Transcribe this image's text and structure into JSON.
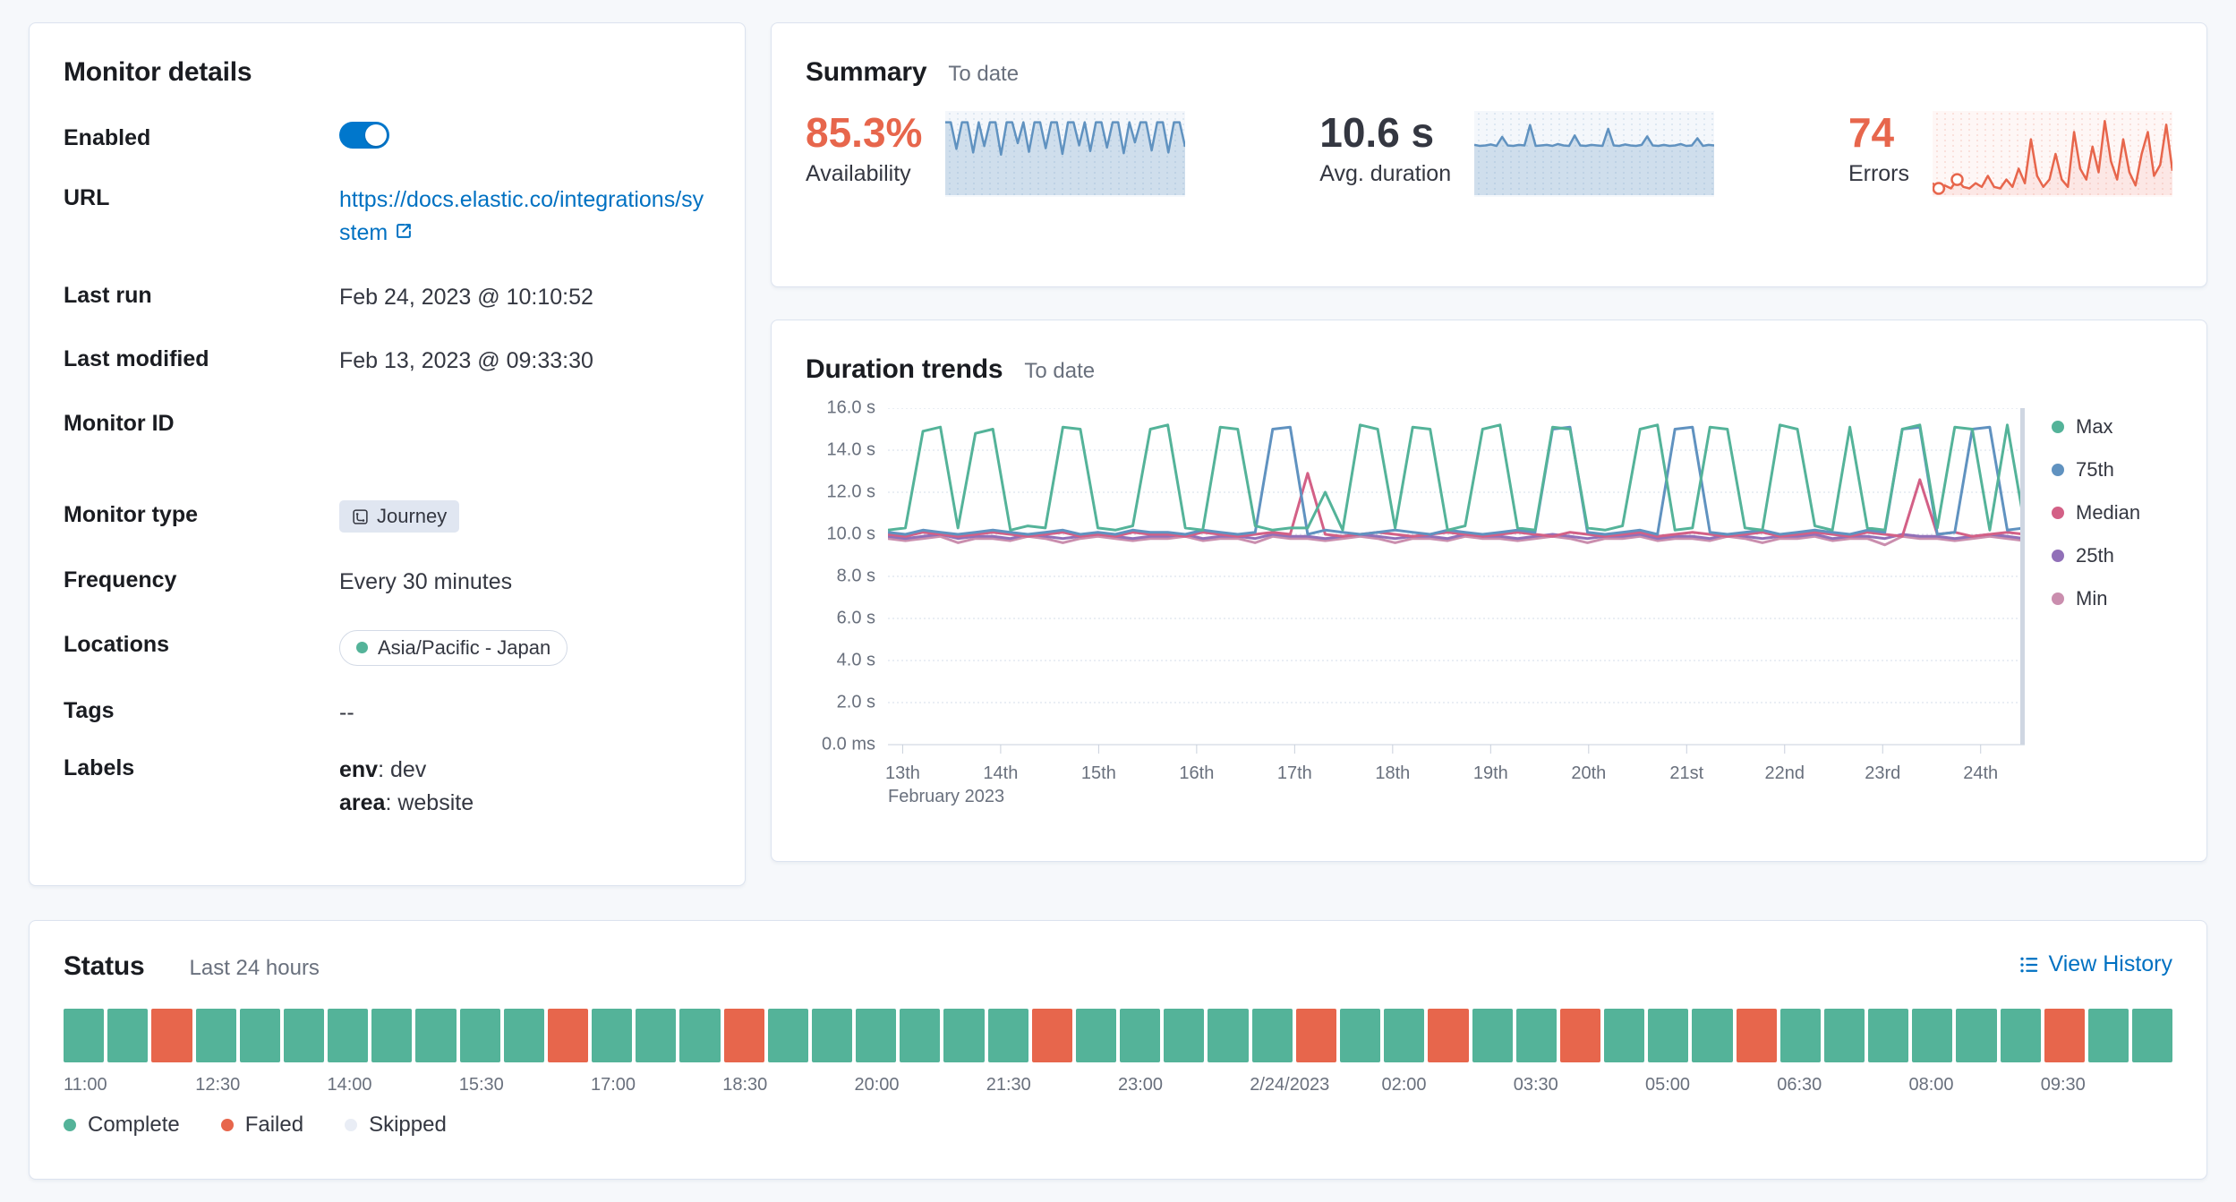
{
  "monitor_details": {
    "title": "Monitor details",
    "enabled_label": "Enabled",
    "url_label": "URL",
    "url_value": "https://docs.elastic.co/integrations/system",
    "last_run_label": "Last run",
    "last_run_value": "Feb 24, 2023 @ 10:10:52",
    "last_modified_label": "Last modified",
    "last_modified_value": "Feb 13, 2023 @ 09:33:30",
    "monitor_id_label": "Monitor ID",
    "monitor_id_value": "",
    "monitor_type_label": "Monitor type",
    "monitor_type_badge": "Journey",
    "frequency_label": "Frequency",
    "frequency_value": "Every 30 minutes",
    "locations_label": "Locations",
    "locations_badge": "Asia/Pacific - Japan",
    "location_dot_color": "#54b399",
    "tags_label": "Tags",
    "tags_value": "--",
    "labels_label": "Labels",
    "labels": [
      {
        "key": "env",
        "rest": ": dev"
      },
      {
        "key": "area",
        "rest": ": website"
      }
    ]
  },
  "summary": {
    "title": "Summary",
    "subtitle": "To date",
    "metrics": [
      {
        "value": "85.3%",
        "label": "Availability",
        "color": "#e7664c"
      },
      {
        "value": "10.6 s",
        "label": "Avg. duration",
        "color": "#343741"
      },
      {
        "value": "74",
        "label": "Errors",
        "color": "#e7664c"
      }
    ]
  },
  "duration_trends": {
    "title": "Duration trends",
    "subtitle": "To date"
  },
  "status": {
    "title": "Status",
    "subtitle": "Last 24 hours",
    "view_history_label": "View History",
    "blocks": [
      "complete",
      "complete",
      "failed",
      "complete",
      "complete",
      "complete",
      "complete",
      "complete",
      "complete",
      "complete",
      "complete",
      "failed",
      "complete",
      "complete",
      "complete",
      "failed",
      "complete",
      "complete",
      "complete",
      "complete",
      "complete",
      "complete",
      "failed",
      "complete",
      "complete",
      "complete",
      "complete",
      "complete",
      "failed",
      "complete",
      "complete",
      "failed",
      "complete",
      "complete",
      "failed",
      "complete",
      "complete",
      "complete",
      "failed",
      "complete",
      "complete",
      "complete",
      "complete",
      "complete",
      "complete",
      "failed",
      "complete",
      "complete"
    ],
    "time_labels": [
      "11:00",
      "12:30",
      "14:00",
      "15:30",
      "17:00",
      "18:30",
      "20:00",
      "21:30",
      "23:00",
      "2/24/2023",
      "02:00",
      "03:30",
      "05:00",
      "06:30",
      "08:00",
      "09:30"
    ],
    "legend": [
      {
        "label": "Complete",
        "color": "#54b399"
      },
      {
        "label": "Failed",
        "color": "#e7664c"
      },
      {
        "label": "Skipped",
        "color": "#e9edf5"
      }
    ]
  },
  "chart_data": [
    {
      "id": "availability_spark",
      "type": "area",
      "title": "Availability sparkline (to date)",
      "ylim": [
        0,
        112
      ],
      "values": [
        100,
        100,
        63,
        100,
        100,
        58,
        100,
        67,
        100,
        100,
        55,
        100,
        100,
        71,
        100,
        59,
        100,
        100,
        64,
        100,
        100,
        56,
        100,
        100,
        68,
        100,
        60,
        100,
        100,
        65,
        100,
        100,
        57,
        100,
        72,
        100,
        100,
        61,
        100,
        100,
        58,
        100,
        100,
        66
      ],
      "color": "#6092c0",
      "fill": "rgba(96,146,192,0.25)",
      "hatch": "rgba(96,146,192,0.30)",
      "bg": "rgba(96,146,192,0.07)"
    },
    {
      "id": "duration_spark",
      "type": "area",
      "title": "Avg. duration sparkline (to date)",
      "ylim": [
        0,
        17
      ],
      "values": [
        10.4,
        10.2,
        10.3,
        10.5,
        10.2,
        12.1,
        10.3,
        10.2,
        10.4,
        10.3,
        14.6,
        10.2,
        10.3,
        10.4,
        10.2,
        10.6,
        10.3,
        10.2,
        12.4,
        10.3,
        10.2,
        10.4,
        10.3,
        10.2,
        13.8,
        10.3,
        10.2,
        10.5,
        10.3,
        10.2,
        10.4,
        12.2,
        10.3,
        10.2,
        10.4,
        10.2,
        10.3,
        10.6,
        10.2,
        10.3,
        11.8,
        10.2,
        10.4,
        10.3
      ],
      "color": "#6092c0",
      "fill": "rgba(96,146,192,0.25)",
      "hatch": "rgba(96,146,192,0.30)",
      "bg": "rgba(96,146,192,0.07)"
    },
    {
      "id": "errors_spark",
      "type": "line",
      "title": "Errors sparkline (to date)",
      "ylim": [
        0,
        11
      ],
      "values": [
        1.5,
        0.8,
        1.2,
        0.8,
        2,
        1,
        0.8,
        1.5,
        1,
        2.5,
        1,
        0.8,
        2,
        1,
        3.5,
        1.5,
        7.5,
        2.5,
        1,
        2,
        5.5,
        2,
        1,
        8.5,
        3.5,
        2,
        6.5,
        3,
        10,
        4.5,
        2,
        7.5,
        3,
        1.2,
        5.5,
        8.5,
        2.5,
        4,
        9.5,
        3.2
      ],
      "markers": [
        1,
        4
      ],
      "color": "#e7664c",
      "fill": "rgba(231,102,76,0.10)",
      "hatch": "rgba(231,102,76,0.30)",
      "bg": "rgba(231,102,76,0.05)"
    },
    {
      "id": "duration_trends",
      "type": "line",
      "title": "Duration trends",
      "xlabel": "February 2023",
      "ylabel": "duration",
      "xlim": [
        12.85,
        24.45
      ],
      "ylim": [
        0,
        16
      ],
      "grid": "horizontal-dotted",
      "legend_position": "right",
      "x_axis_secondary": "February 2023",
      "y_ticks": [
        {
          "label": "16.0 s",
          "value": 16
        },
        {
          "label": "14.0 s",
          "value": 14
        },
        {
          "label": "12.0 s",
          "value": 12
        },
        {
          "label": "10.0 s",
          "value": 10
        },
        {
          "label": "8.0 s",
          "value": 8
        },
        {
          "label": "6.0 s",
          "value": 6
        },
        {
          "label": "4.0 s",
          "value": 4
        },
        {
          "label": "2.0 s",
          "value": 2
        },
        {
          "label": "0.0 ms",
          "value": 0
        }
      ],
      "x_ticks": [
        {
          "label": "13th",
          "value": 13
        },
        {
          "label": "14th",
          "value": 14
        },
        {
          "label": "15th",
          "value": 15
        },
        {
          "label": "16th",
          "value": 16
        },
        {
          "label": "17th",
          "value": 17
        },
        {
          "label": "18th",
          "value": 18
        },
        {
          "label": "19th",
          "value": 19
        },
        {
          "label": "20th",
          "value": 20
        },
        {
          "label": "21st",
          "value": 21
        },
        {
          "label": "22nd",
          "value": 22
        },
        {
          "label": "23rd",
          "value": 23
        },
        {
          "label": "24th",
          "value": 24
        }
      ],
      "series": [
        {
          "name": "Max",
          "color": "#54b399",
          "values": [
            10.2,
            10.3,
            14.9,
            15.1,
            10.3,
            14.8,
            15.0,
            10.2,
            10.4,
            10.3,
            15.1,
            15.0,
            10.3,
            10.2,
            10.4,
            15.0,
            15.2,
            10.3,
            10.2,
            15.1,
            15.0,
            10.4,
            10.2,
            10.3,
            10.3,
            12.0,
            10.2,
            15.2,
            15.0,
            10.3,
            15.1,
            15.0,
            10.2,
            10.4,
            15.0,
            15.2,
            10.3,
            10.2,
            15.1,
            15.0,
            10.3,
            10.2,
            10.4,
            15.0,
            15.2,
            10.2,
            10.3,
            15.1,
            15.0,
            10.3,
            10.2,
            15.2,
            15.0,
            10.4,
            10.2,
            15.1,
            10.3,
            10.2,
            15.0,
            15.2,
            10.3,
            15.1,
            15.0,
            10.2,
            15.2,
            10.4
          ]
        },
        {
          "name": "75th",
          "color": "#6092c0",
          "values": [
            10.1,
            10.0,
            10.2,
            10.1,
            10.0,
            10.1,
            10.2,
            10.1,
            10.0,
            10.1,
            10.2,
            10.0,
            10.1,
            10.0,
            10.2,
            10.1,
            10.1,
            10.0,
            10.2,
            10.1,
            10.0,
            10.1,
            15.0,
            15.1,
            10.0,
            10.2,
            10.1,
            10.0,
            10.1,
            10.2,
            10.1,
            10.0,
            10.2,
            10.1,
            10.0,
            10.1,
            10.2,
            10.1,
            15.0,
            15.1,
            10.1,
            10.0,
            10.1,
            10.2,
            10.0,
            15.0,
            15.1,
            10.1,
            10.0,
            10.1,
            10.2,
            10.0,
            10.1,
            10.2,
            10.1,
            10.0,
            10.2,
            10.1,
            15.0,
            15.1,
            10.0,
            10.1,
            15.0,
            15.1,
            10.2,
            10.3
          ]
        },
        {
          "name": "Median",
          "color": "#d36086",
          "values": [
            10.0,
            9.9,
            10.1,
            10.0,
            9.9,
            10.0,
            10.1,
            10.0,
            9.9,
            10.0,
            10.1,
            9.9,
            10.0,
            9.9,
            10.1,
            10.0,
            10.0,
            9.9,
            10.1,
            10.0,
            9.9,
            10.0,
            10.1,
            10.0,
            12.9,
            10.0,
            9.9,
            10.0,
            10.1,
            10.0,
            9.9,
            10.0,
            10.1,
            10.0,
            9.9,
            10.0,
            10.1,
            10.0,
            9.9,
            10.1,
            10.0,
            9.9,
            10.0,
            10.1,
            9.9,
            10.0,
            10.1,
            10.0,
            9.9,
            10.0,
            10.1,
            9.9,
            10.0,
            10.1,
            10.0,
            9.9,
            10.1,
            10.0,
            9.9,
            12.6,
            10.0,
            10.1,
            9.9,
            10.0,
            10.1,
            10.0
          ]
        },
        {
          "name": "25th",
          "color": "#9170b8",
          "values": [
            9.9,
            9.8,
            9.9,
            10.0,
            9.8,
            9.9,
            9.9,
            9.8,
            10.0,
            9.9,
            9.8,
            9.9,
            10.0,
            9.9,
            9.8,
            9.9,
            9.9,
            10.0,
            9.8,
            9.9,
            9.9,
            9.8,
            10.0,
            9.9,
            9.9,
            9.8,
            9.9,
            10.0,
            9.9,
            9.8,
            9.9,
            9.9,
            9.8,
            10.0,
            9.9,
            9.9,
            9.8,
            9.9,
            10.0,
            9.9,
            9.8,
            9.9,
            9.9,
            10.0,
            9.8,
            9.9,
            9.9,
            9.8,
            10.0,
            9.9,
            9.8,
            9.9,
            9.9,
            10.0,
            9.8,
            9.9,
            9.9,
            9.8,
            10.0,
            9.9,
            9.9,
            9.8,
            9.9,
            10.0,
            9.9,
            9.8
          ]
        },
        {
          "name": "Min",
          "color": "#ca8eae",
          "values": [
            9.8,
            9.7,
            9.8,
            9.9,
            9.6,
            9.8,
            9.8,
            9.7,
            9.9,
            9.8,
            9.6,
            9.8,
            9.9,
            9.8,
            9.7,
            9.8,
            9.8,
            9.9,
            9.7,
            9.8,
            9.8,
            9.6,
            9.9,
            9.8,
            9.8,
            9.7,
            9.8,
            9.9,
            9.8,
            9.6,
            9.8,
            9.8,
            9.7,
            9.9,
            9.8,
            9.8,
            9.7,
            9.8,
            9.9,
            9.8,
            9.6,
            9.8,
            9.8,
            9.9,
            9.7,
            9.8,
            9.8,
            9.7,
            9.9,
            9.8,
            9.6,
            9.8,
            9.8,
            9.9,
            9.7,
            9.8,
            9.8,
            9.5,
            9.9,
            9.8,
            9.8,
            9.7,
            9.8,
            9.9,
            9.8,
            9.7
          ]
        }
      ]
    }
  ]
}
